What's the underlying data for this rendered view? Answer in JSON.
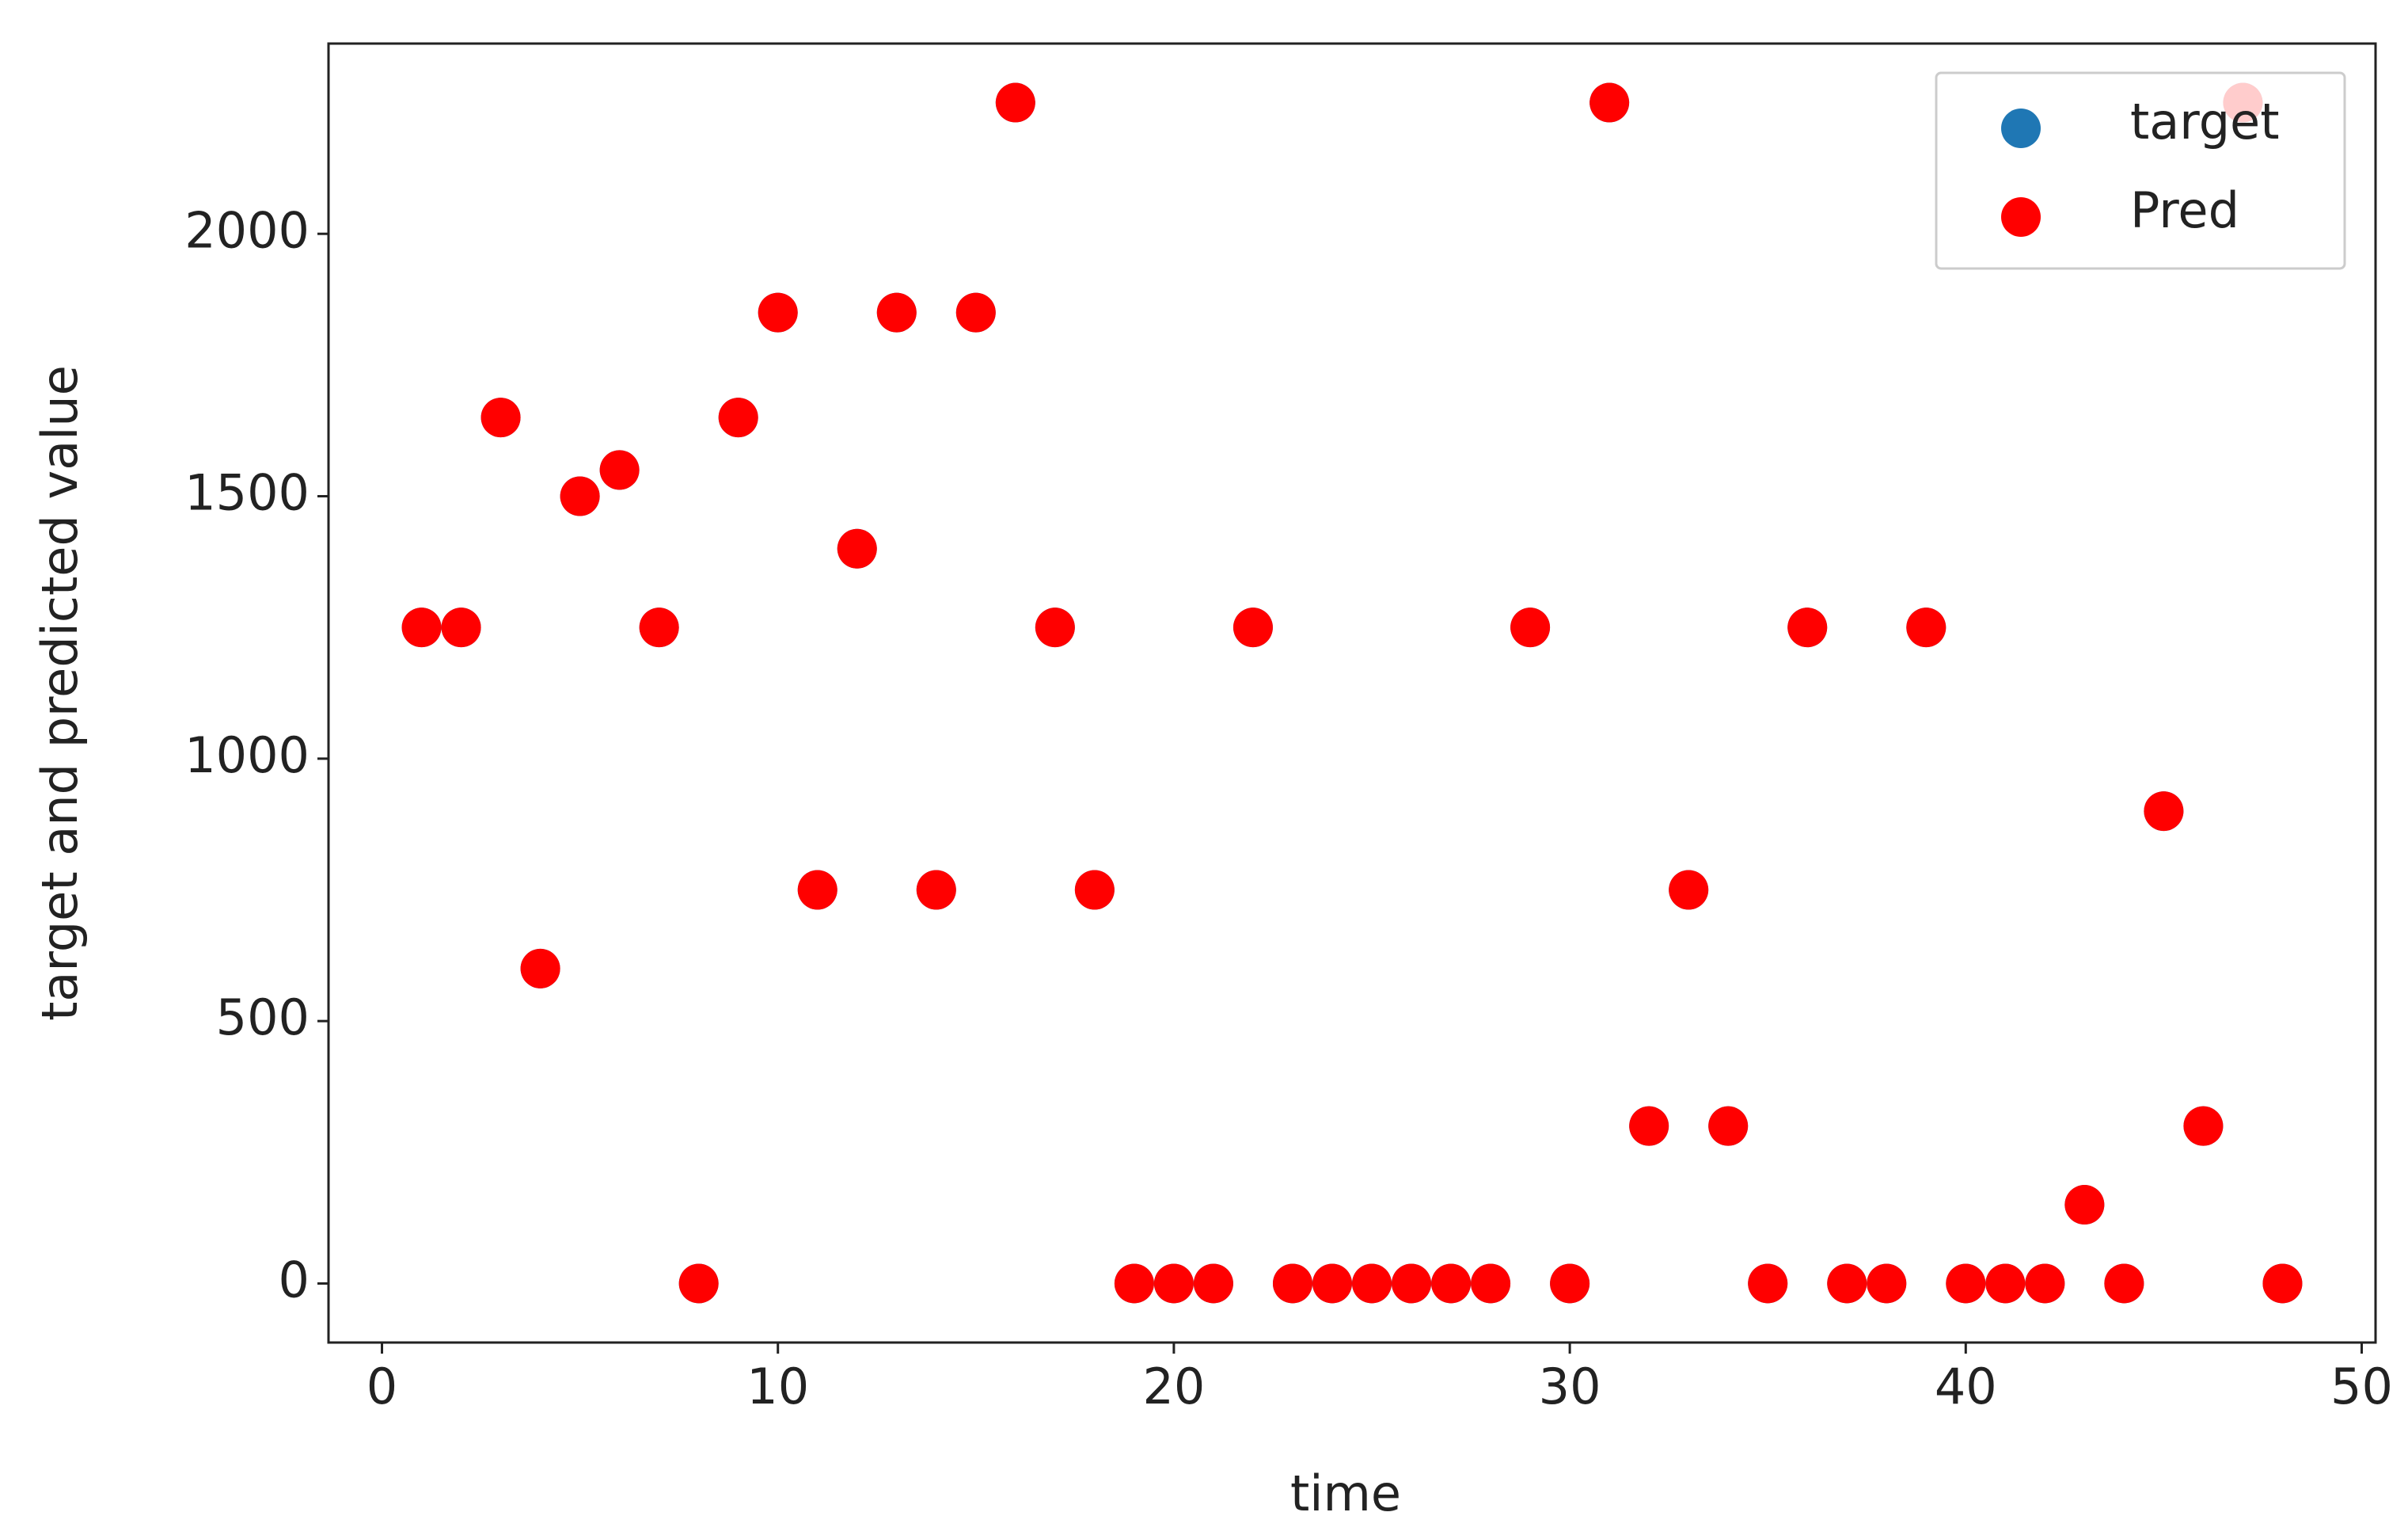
{
  "chart_data": {
    "type": "scatter",
    "x_label": "time",
    "y_label": "target and predicted value",
    "x": [
      1,
      2,
      3,
      4,
      5,
      6,
      7,
      8,
      9,
      10,
      11,
      12,
      13,
      14,
      15,
      16,
      17,
      18,
      19,
      20,
      21,
      22,
      23,
      24,
      25,
      26,
      27,
      28,
      29,
      30,
      31,
      32,
      33,
      34,
      35,
      36,
      37,
      38,
      39,
      40,
      41,
      42,
      43,
      44,
      45,
      46,
      47,
      48
    ],
    "series": [
      {
        "name": "target",
        "color": "#1f77b4",
        "values": [
          1250,
          1250,
          1650,
          600,
          1500,
          1550,
          1250,
          0,
          1650,
          1850,
          750,
          1400,
          1850,
          750,
          1850,
          2250,
          1250,
          750,
          0,
          0,
          0,
          1250,
          0,
          0,
          0,
          0,
          0,
          0,
          1250,
          0,
          2250,
          300,
          750,
          300,
          0,
          1250,
          0,
          0,
          1250,
          0,
          0,
          0,
          150,
          0,
          900,
          300,
          2250,
          0
        ]
      },
      {
        "name": "Pred",
        "color": "#ff0000",
        "values": [
          1250,
          1250,
          1650,
          600,
          1500,
          1550,
          1250,
          0,
          1650,
          1850,
          750,
          1400,
          1850,
          750,
          1850,
          2250,
          1250,
          750,
          0,
          0,
          0,
          1250,
          0,
          0,
          0,
          0,
          0,
          0,
          1250,
          0,
          2250,
          300,
          750,
          300,
          0,
          1250,
          0,
          0,
          1250,
          0,
          0,
          0,
          150,
          0,
          900,
          300,
          2250,
          0
        ]
      }
    ],
    "xlim": [
      -1.35,
      50.35
    ],
    "ylim": [
      -112.5,
      2362.5
    ],
    "xticks": [
      0,
      10,
      20,
      30,
      40,
      50
    ],
    "yticks": [
      0,
      500,
      1000,
      1500,
      2000
    ],
    "legend_position": "upper right"
  }
}
